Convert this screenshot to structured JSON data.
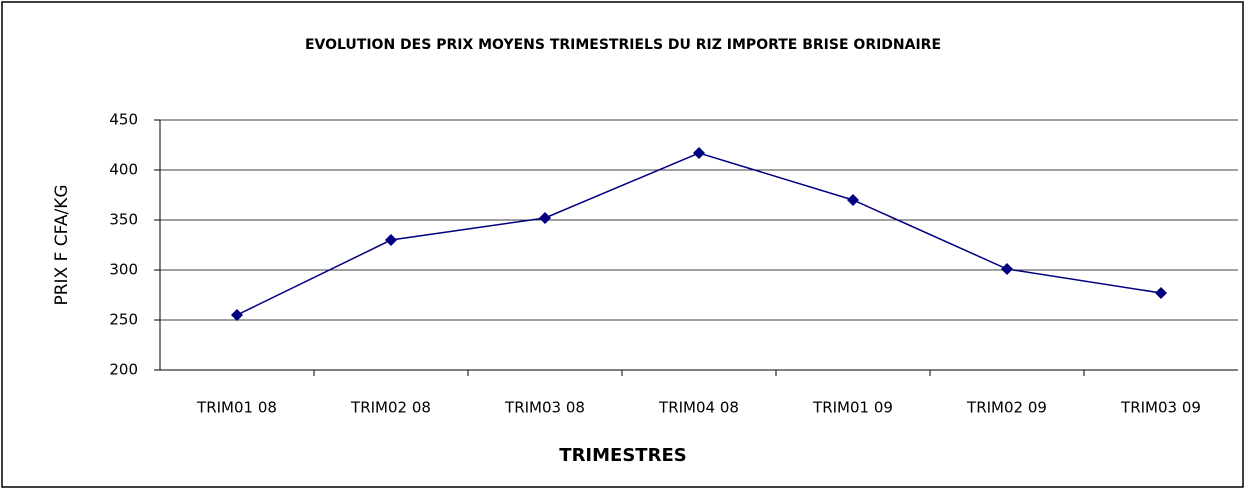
{
  "chart_data": {
    "type": "line",
    "title": "EVOLUTION DES PRIX MOYENS TRIMESTRIELS DU RIZ IMPORTE BRISE ORIDNAIRE",
    "x_label": "TRIMESTRES",
    "y_label": "PRIX F CFA/KG",
    "categories": [
      "TRIM01 08",
      "TRIM02 08",
      "TRIM03 08",
      "TRIM04 08",
      "TRIM01 09",
      "TRIM02 09",
      "TRIM03 09"
    ],
    "series": [
      {
        "name": "Prix",
        "color": "#000080",
        "values": [
          255,
          330,
          352,
          417,
          370,
          301,
          277
        ]
      }
    ],
    "ylim": [
      200,
      450
    ],
    "yticks": [
      200,
      250,
      300,
      350,
      400,
      450
    ],
    "grid": true
  }
}
